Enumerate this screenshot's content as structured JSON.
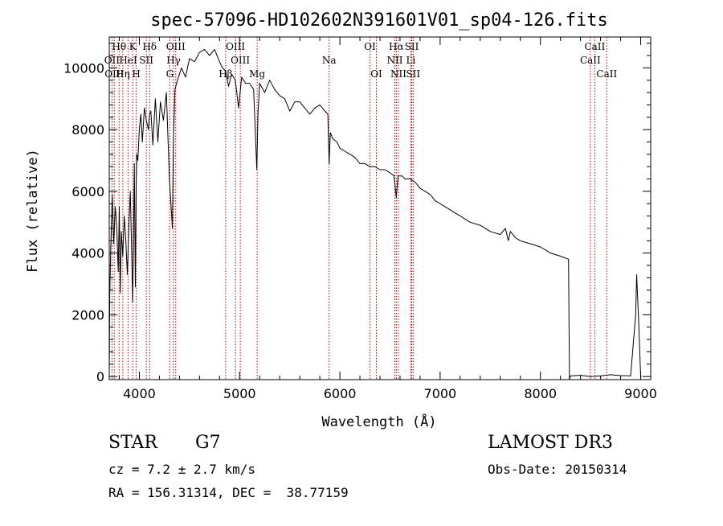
{
  "chart_data": {
    "type": "line",
    "title": "spec-57096-HD102602N391601V01_sp04-126.fits",
    "xlabel": "Wavelength (Å)",
    "ylabel": "Flux (relative)",
    "xlim": [
      3700,
      9100
    ],
    "ylim": [
      -100,
      11000
    ],
    "xticks": [
      4000,
      5000,
      6000,
      7000,
      8000,
      9000
    ],
    "yticks": [
      0,
      2000,
      4000,
      6000,
      8000,
      10000
    ],
    "xtick_labels": [
      "4000",
      "5000",
      "6000",
      "7000",
      "8000",
      "9000"
    ],
    "ytick_labels": [
      "0",
      "2000",
      "4000",
      "6000",
      "8000",
      "10000"
    ],
    "series": [
      {
        "name": "spectrum",
        "x": [
          3700,
          3705,
          3715,
          3730,
          3745,
          3760,
          3775,
          3790,
          3800,
          3810,
          3820,
          3835,
          3850,
          3865,
          3880,
          3895,
          3910,
          3925,
          3933,
          3940,
          3950,
          3960,
          3968,
          3975,
          3985,
          4000,
          4015,
          4030,
          4050,
          4070,
          4090,
          4102,
          4115,
          4135,
          4160,
          4185,
          4210,
          4240,
          4270,
          4300,
          4330,
          4340,
          4355,
          4380,
          4420,
          4460,
          4500,
          4550,
          4600,
          4650,
          4700,
          4750,
          4800,
          4830,
          4861,
          4890,
          4920,
          4957,
          4990,
          5020,
          5060,
          5100,
          5140,
          5172,
          5183,
          5200,
          5250,
          5300,
          5350,
          5400,
          5450,
          5500,
          5550,
          5600,
          5650,
          5700,
          5750,
          5800,
          5850,
          5880,
          5893,
          5905,
          5930,
          5970,
          6000,
          6050,
          6100,
          6150,
          6200,
          6250,
          6300,
          6350,
          6400,
          6450,
          6500,
          6540,
          6563,
          6580,
          6620,
          6650,
          6700,
          6750,
          6800,
          6850,
          6900,
          6950,
          7000,
          7050,
          7100,
          7150,
          7200,
          7300,
          7400,
          7500,
          7600,
          7650,
          7680,
          7700,
          7750,
          7800,
          7900,
          8000,
          8100,
          8200,
          8280,
          8290,
          8300,
          8400,
          8500,
          8600,
          8700,
          8800,
          8900,
          8950,
          8960,
          8980,
          9000,
          9010
        ],
        "y": [
          0,
          2600,
          4200,
          5900,
          4300,
          5500,
          4800,
          3400,
          5500,
          2700,
          4700,
          3900,
          5200,
          4400,
          3300,
          4800,
          6000,
          3800,
          2400,
          4000,
          6900,
          2900,
          6200,
          7200,
          7000,
          8000,
          8500,
          7600,
          8700,
          8300,
          8000,
          8500,
          8600,
          7500,
          9000,
          7600,
          8900,
          8300,
          9200,
          6400,
          4800,
          7700,
          9300,
          9600,
          10000,
          9700,
          10300,
          10200,
          10500,
          10600,
          10400,
          10600,
          10200,
          10000,
          9900,
          9400,
          9800,
          9600,
          8700,
          9700,
          9500,
          9500,
          9300,
          6700,
          8500,
          9500,
          9200,
          9600,
          9300,
          9100,
          9000,
          8600,
          8900,
          8900,
          8700,
          8500,
          8700,
          8800,
          8600,
          8500,
          6900,
          7900,
          7700,
          7600,
          7400,
          7300,
          7200,
          7100,
          6900,
          6900,
          6800,
          6800,
          6700,
          6700,
          6600,
          6500,
          5800,
          6500,
          6500,
          6400,
          6400,
          6300,
          6100,
          6000,
          5900,
          5700,
          5600,
          5500,
          5400,
          5300,
          5200,
          5000,
          4900,
          4700,
          4600,
          4800,
          4400,
          4700,
          4500,
          4400,
          4300,
          4200,
          4000,
          3900,
          3800,
          -100,
          20,
          40,
          0,
          20,
          60,
          30,
          20,
          2000,
          3300,
          1800,
          20,
          0
        ]
      }
    ],
    "lines": [
      {
        "label": "Hθ",
        "x": 3798,
        "row": 1
      },
      {
        "label": "OII",
        "x": 3727,
        "row": 2
      },
      {
        "label": "OIII",
        "x": 3750,
        "row": 3
      },
      {
        "label": "K",
        "x": 3934,
        "row": 1
      },
      {
        "label": "HeI",
        "x": 3889,
        "row": 2
      },
      {
        "label": "Hη",
        "x": 3835,
        "row": 3
      },
      {
        "label": "SII",
        "x": 4070,
        "row": 2
      },
      {
        "label": "H",
        "x": 3969,
        "row": 3
      },
      {
        "label": "Hδ",
        "x": 4102,
        "row": 1
      },
      {
        "label": "OIII",
        "x": 4363,
        "row": 1
      },
      {
        "label": "Hγ",
        "x": 4341,
        "row": 2
      },
      {
        "label": "G",
        "x": 4304,
        "row": 3
      },
      {
        "label": "OIII",
        "x": 4959,
        "row": 1
      },
      {
        "label": "OIII",
        "x": 5007,
        "row": 2
      },
      {
        "label": "Hβ",
        "x": 4861,
        "row": 3
      },
      {
        "label": "Mg",
        "x": 5175,
        "row": 3
      },
      {
        "label": "Na",
        "x": 5893,
        "row": 2
      },
      {
        "label": "OI",
        "x": 6300,
        "row": 1
      },
      {
        "label": "OI",
        "x": 6364,
        "row": 3
      },
      {
        "label": "Hα",
        "x": 6563,
        "row": 1
      },
      {
        "label": "NII",
        "x": 6548,
        "row": 2
      },
      {
        "label": "NII",
        "x": 6584,
        "row": 3
      },
      {
        "label": "SII",
        "x": 6717,
        "row": 1
      },
      {
        "label": "Li",
        "x": 6708,
        "row": 2
      },
      {
        "label": "SII",
        "x": 6731,
        "row": 3
      },
      {
        "label": "CaII",
        "x": 8542,
        "row": 1
      },
      {
        "label": "CaII",
        "x": 8498,
        "row": 2
      },
      {
        "label": "CaII",
        "x": 8662,
        "row": 3
      }
    ]
  },
  "info": {
    "class_label": "STAR",
    "subclass": "G7",
    "cz": "cz = 7.2 ± 2.7 km/s",
    "coords": "RA = 156.31314, DEC =  38.77159",
    "survey": "LAMOST DR3",
    "obs_date": "Obs-Date: 20150314"
  },
  "colors": {
    "spectrum": "#000000",
    "lines": "#c00000",
    "text": "#000000"
  }
}
